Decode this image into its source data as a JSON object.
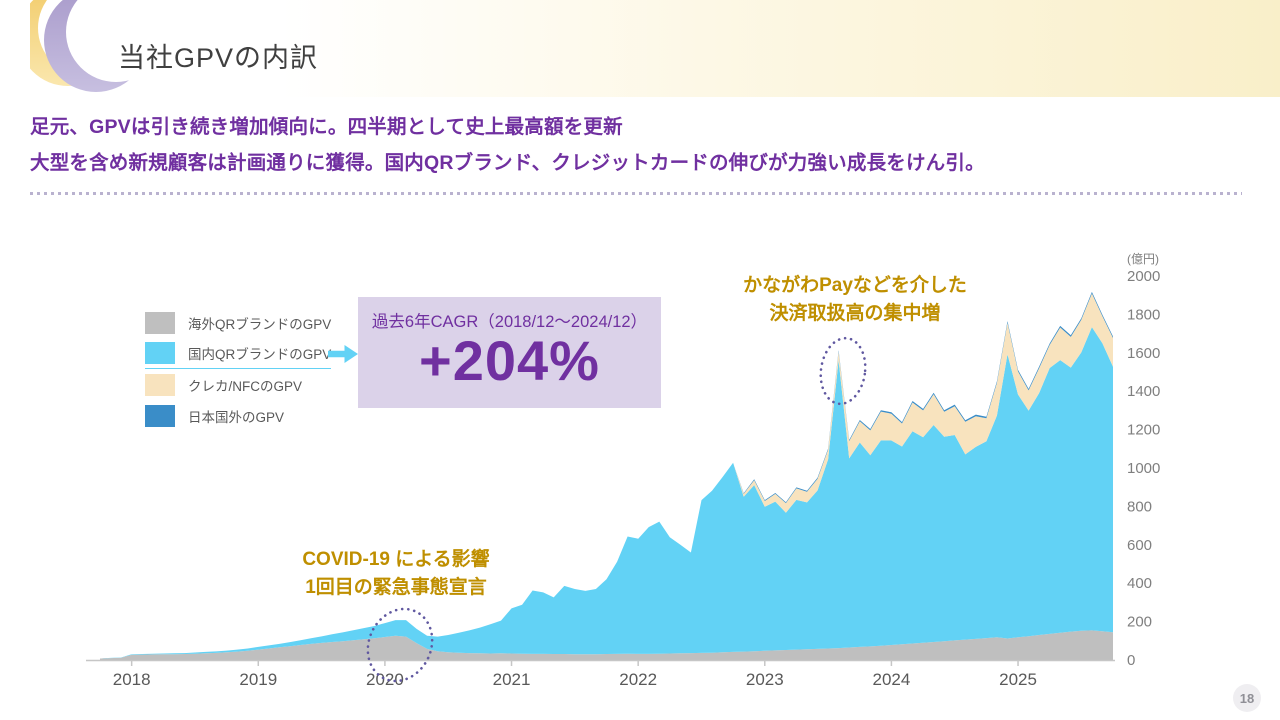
{
  "slide": {
    "title": "当社GPVの内訳",
    "headline_line1": "足元、GPVは引き続き増加傾向に。四半期として史上最高額を更新",
    "headline_line2": "大型を含め新規顧客は計画通りに獲得。国内QRブランド、クレジットカードの伸びが力強い成長をけん引。",
    "page_number": "18"
  },
  "colors": {
    "headline_purple": "#7030A0",
    "annotation_gold": "#BF8F00",
    "cagr_box_bg": "#DBD2E9",
    "legend_arrow_blue": "#62D2F5",
    "axis_text_gray": "#7F7F7F",
    "ellipse_dotted_purple": "#6058A0",
    "header_cream": "#F9EFC9",
    "logo_yellow": "#F4D482",
    "logo_purple": "#B3A7D3"
  },
  "cagr_box": {
    "label": "過去6年CAGR（2018/12～2024/12）",
    "value": "+204%"
  },
  "annotations": {
    "kanagawa_line1": "かながわPayなどを介した",
    "kanagawa_line2": "決済取扱高の集中増",
    "covid_line1": "COVID-19 による影響",
    "covid_line2": "1回目の緊急事態宣言"
  },
  "legend": {
    "items": [
      {
        "label": "海外QRブランドのGPV",
        "color": "#BFBFBF"
      },
      {
        "label": "国内QRブランドのGPV",
        "color": "#62D2F5"
      },
      {
        "label": "クレカ/NFCのGPV",
        "color": "#F8E3BE"
      },
      {
        "label": "日本国外のGPV",
        "color": "#3A8DC8"
      }
    ]
  },
  "chart_data": {
    "type": "area",
    "stacked": true,
    "unit_label": "(億円)",
    "ylabel": "",
    "xlabel": "",
    "ylim": [
      0,
      2000
    ],
    "y_ticks": [
      0,
      200,
      400,
      600,
      800,
      1000,
      1200,
      1400,
      1600,
      1800,
      2000
    ],
    "x_tick_labels": [
      "2018",
      "2019",
      "2020",
      "2021",
      "2022",
      "2023",
      "2024",
      "2025"
    ],
    "frequency": "monthly",
    "x_start": "2017-10",
    "x_end": "2025-10",
    "grid": false,
    "legend_position": "upper-left",
    "series": [
      {
        "name": "海外QRブランドのGPV",
        "color": "#BFBFBF",
        "values": [
          8,
          10,
          12,
          27,
          28,
          29,
          30,
          30,
          31,
          33,
          35,
          37,
          40,
          44,
          48,
          54,
          60,
          66,
          72,
          78,
          84,
          89,
          94,
          98,
          103,
          108,
          113,
          120,
          126,
          122,
          88,
          58,
          46,
          40,
          38,
          36,
          35,
          34,
          35,
          34,
          33,
          32,
          32,
          31,
          31,
          30,
          30,
          30,
          31,
          32,
          33,
          32,
          32,
          33,
          34,
          35,
          36,
          37,
          38,
          40,
          42,
          44,
          46,
          48,
          50,
          52,
          54,
          56,
          58,
          60,
          62,
          65,
          68,
          71,
          74,
          78,
          82,
          86,
          90,
          94,
          98,
          102,
          106,
          110,
          114,
          118,
          112,
          118,
          124,
          130,
          136,
          142,
          148,
          152,
          154,
          150,
          145
        ]
      },
      {
        "name": "国内QRブランドのGPV",
        "color": "#62D2F5",
        "values": [
          0,
          1,
          1,
          3,
          3,
          4,
          4,
          5,
          5,
          6,
          7,
          8,
          9,
          10,
          12,
          14,
          16,
          18,
          21,
          25,
          29,
          34,
          40,
          46,
          52,
          58,
          64,
          72,
          82,
          86,
          74,
          68,
          76,
          90,
          104,
          118,
          134,
          152,
          170,
          235,
          255,
          330,
          320,
          295,
          355,
          340,
          330,
          340,
          390,
          480,
          610,
          600,
          660,
          688,
          605,
          565,
          524,
          796,
          843,
          913,
          985,
          806,
          865,
          750,
          775,
          715,
          780,
          765,
          825,
          985,
          1500,
          985,
          1065,
          995,
          1070,
          1065,
          1030,
          1105,
          1070,
          1130,
          1065,
          1070,
          965,
          1000,
          1025,
          1155,
          1480,
          1265,
          1175,
          1260,
          1385,
          1420,
          1375,
          1450,
          1580,
          1500,
          1382
        ]
      },
      {
        "name": "クレカ/NFCのGPV",
        "color": "#F8E3BE",
        "values": [
          0,
          0,
          0,
          0,
          0,
          0,
          0,
          0,
          0,
          0,
          0,
          0,
          0,
          0,
          0,
          0,
          0,
          0,
          0,
          0,
          0,
          0,
          0,
          0,
          0,
          0,
          0,
          0,
          0,
          0,
          0,
          0,
          0,
          0,
          0,
          0,
          0,
          0,
          0,
          0,
          0,
          0,
          0,
          0,
          0,
          0,
          0,
          0,
          0,
          0,
          0,
          0,
          0,
          0,
          0,
          0,
          0,
          0,
          0,
          0,
          0,
          15,
          25,
          30,
          40,
          50,
          60,
          55,
          60,
          50,
          45,
          90,
          110,
          130,
          150,
          140,
          120,
          150,
          140,
          160,
          130,
          150,
          170,
          160,
          120,
          170,
          165,
          120,
          105,
          130,
          120,
          170,
          160,
          170,
          175,
          140,
          150
        ]
      },
      {
        "name": "日本国外のGPV",
        "color": "#3A8DC8",
        "values": [
          0,
          0,
          0,
          0,
          0,
          0,
          0,
          0,
          0,
          0,
          0,
          0,
          0,
          0,
          0,
          0,
          0,
          0,
          0,
          0,
          0,
          0,
          0,
          0,
          0,
          0,
          0,
          0,
          0,
          0,
          0,
          0,
          0,
          0,
          0,
          0,
          0,
          0,
          0,
          0,
          0,
          0,
          0,
          0,
          0,
          0,
          0,
          0,
          0,
          0,
          0,
          0,
          0,
          0,
          0,
          0,
          0,
          0,
          0,
          0,
          0,
          4,
          5,
          5,
          5,
          5,
          5,
          5,
          6,
          6,
          6,
          6,
          7,
          7,
          7,
          7,
          7,
          8,
          8,
          8,
          8,
          8,
          8,
          8,
          8,
          8,
          8,
          8,
          8,
          8,
          8,
          8,
          8,
          8,
          8,
          8,
          8
        ]
      }
    ]
  }
}
